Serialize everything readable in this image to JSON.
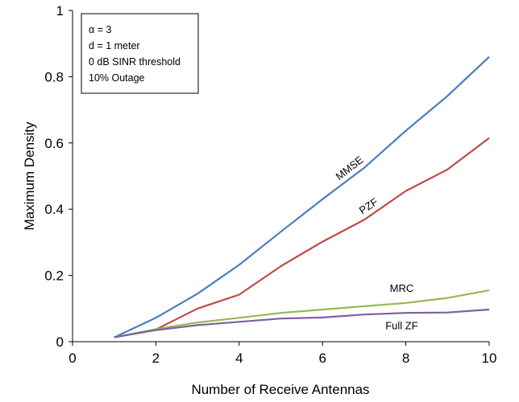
{
  "chart_data": {
    "type": "line",
    "xlabel": "Number of Receive Antennas",
    "ylabel": "Maximum Density",
    "xlim": [
      0,
      10
    ],
    "ylim": [
      0,
      1
    ],
    "xticks": [
      "0",
      "2",
      "4",
      "6",
      "8",
      "10"
    ],
    "yticks": [
      "0",
      "0.2",
      "0.4",
      "0.6",
      "0.8",
      "1"
    ],
    "grid": false,
    "legend": "none",
    "annotation_box": {
      "lines": [
        "α = 3",
        "d = 1 meter",
        "0 dB SINR threshold",
        "10% Outage"
      ]
    },
    "x": [
      1,
      2,
      3,
      4,
      5,
      6,
      7,
      8,
      9,
      10
    ],
    "series": [
      {
        "name": "MMSE",
        "color": "#4a7ebb",
        "values": [
          0.013,
          0.072,
          0.145,
          0.232,
          0.332,
          0.43,
          0.525,
          0.637,
          0.742,
          0.86
        ]
      },
      {
        "name": "PZF",
        "color": "#be4b48",
        "values": [
          0.013,
          0.037,
          0.1,
          0.142,
          0.228,
          0.302,
          0.368,
          0.455,
          0.52,
          0.615
        ]
      },
      {
        "name": "MRC",
        "color": "#98b954",
        "values": [
          0.013,
          0.038,
          0.058,
          0.072,
          0.087,
          0.097,
          0.107,
          0.117,
          0.132,
          0.155
        ]
      },
      {
        "name": "Full ZF",
        "color": "#7d60a0",
        "values": [
          0.013,
          0.035,
          0.05,
          0.06,
          0.07,
          0.073,
          0.082,
          0.087,
          0.088,
          0.097
        ]
      }
    ]
  }
}
